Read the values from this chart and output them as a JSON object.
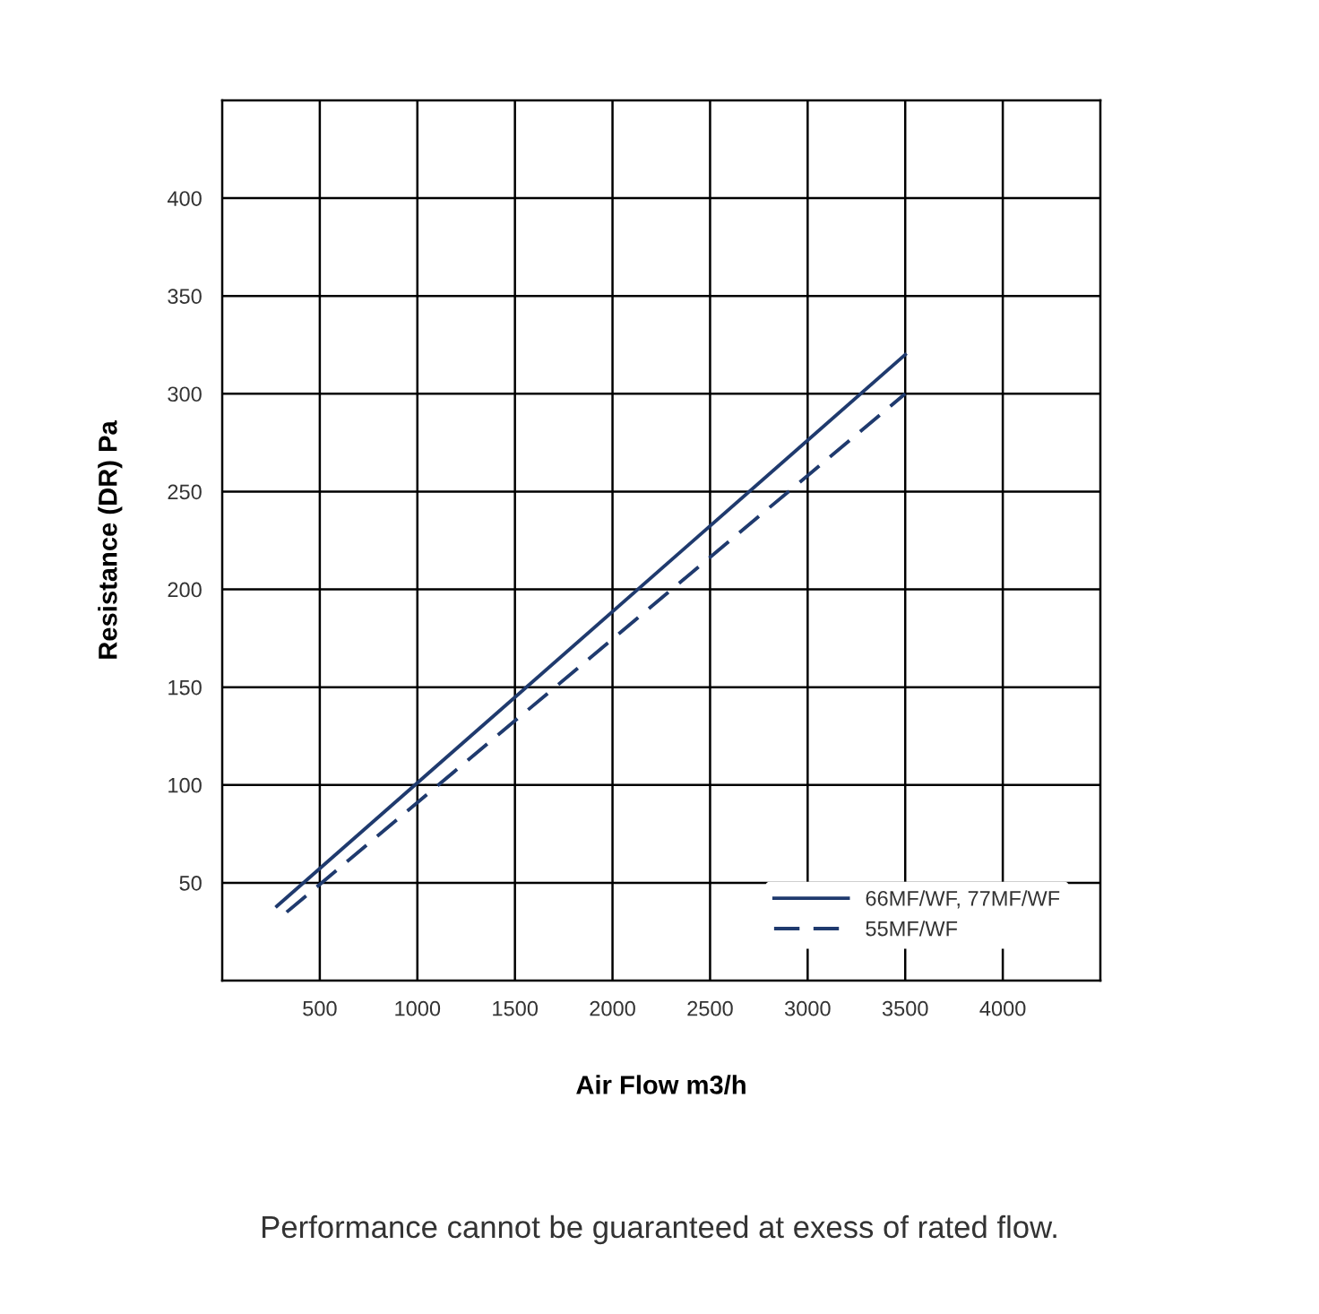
{
  "chart_data": {
    "type": "line",
    "xlabel": "Air Flow m3/h",
    "ylabel": "Resistance (DR) Pa",
    "series": [
      {
        "name": "66MF/WF, 77MF/WF",
        "color": "#1f3a6e",
        "x": [
          280,
          3500
        ],
        "values": [
          38,
          320
        ],
        "line_style": "solid"
      },
      {
        "name": "55MF/WF",
        "color": "#1f3a6e",
        "x": [
          330,
          3500
        ],
        "values": [
          35,
          300
        ],
        "line_style": "dashed"
      }
    ],
    "xlim": [
      0,
      4500
    ],
    "ylim": [
      0,
      450
    ],
    "xticks": [
      500,
      1000,
      1500,
      2000,
      2500,
      3000,
      3500,
      4000
    ],
    "yticks": [
      50,
      100,
      150,
      200,
      250,
      300,
      350,
      400
    ],
    "grid": true,
    "legend": "bottom right",
    "annotations": [
      "Performance cannot be guaranteed at exess of rated flow."
    ]
  }
}
